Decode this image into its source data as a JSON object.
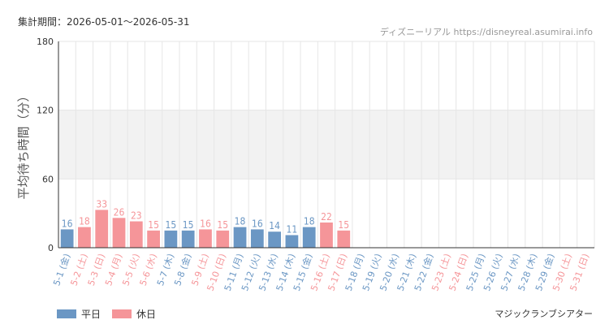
{
  "header": {
    "period": "集計期間：2026-05-01～2026-05-31",
    "credit": "ディズニーリアル https://disneyreal.asumirai.info"
  },
  "footer": {
    "attraction": "マジックランブシアター"
  },
  "legend": {
    "weekday": "平日",
    "holiday": "休日"
  },
  "colors": {
    "weekday": "#6b97c4",
    "holiday": "#f59599",
    "band": "#f2f2f2",
    "grid": "#e6e6e6",
    "axis": "#333333"
  },
  "chart_data": {
    "type": "bar",
    "ylabel": "平均待ち時間（分）",
    "ylim": [
      0,
      180
    ],
    "yticks": [
      0,
      60,
      120,
      180
    ],
    "shaded_band": [
      60,
      120
    ],
    "categories": [
      "5-1 (金)",
      "5-2 (土)",
      "5-3 (日)",
      "5-4 (月)",
      "5-5 (火)",
      "5-6 (水)",
      "5-7 (木)",
      "5-8 (金)",
      "5-9 (土)",
      "5-10 (日)",
      "5-11 (月)",
      "5-12 (火)",
      "5-13 (水)",
      "5-14 (木)",
      "5-15 (金)",
      "5-16 (土)",
      "5-17 (日)",
      "5-18 (月)",
      "5-19 (火)",
      "5-20 (水)",
      "5-21 (木)",
      "5-22 (金)",
      "5-23 (土)",
      "5-24 (日)",
      "5-25 (月)",
      "5-26 (火)",
      "5-27 (水)",
      "5-28 (木)",
      "5-29 (金)",
      "5-30 (土)",
      "5-31 (日)"
    ],
    "values": [
      16,
      18,
      33,
      26,
      23,
      15,
      15,
      15,
      16,
      15,
      18,
      16,
      14,
      11,
      18,
      22,
      15,
      null,
      null,
      null,
      null,
      null,
      null,
      null,
      null,
      null,
      null,
      null,
      null,
      null,
      null
    ],
    "day_type": [
      "weekday",
      "holiday",
      "holiday",
      "holiday",
      "holiday",
      "holiday",
      "weekday",
      "weekday",
      "holiday",
      "holiday",
      "weekday",
      "weekday",
      "weekday",
      "weekday",
      "weekday",
      "holiday",
      "holiday",
      "weekday",
      "weekday",
      "weekday",
      "weekday",
      "weekday",
      "holiday",
      "holiday",
      "weekday",
      "weekday",
      "weekday",
      "weekday",
      "weekday",
      "holiday",
      "holiday"
    ],
    "legend_position": "bottom-left"
  }
}
